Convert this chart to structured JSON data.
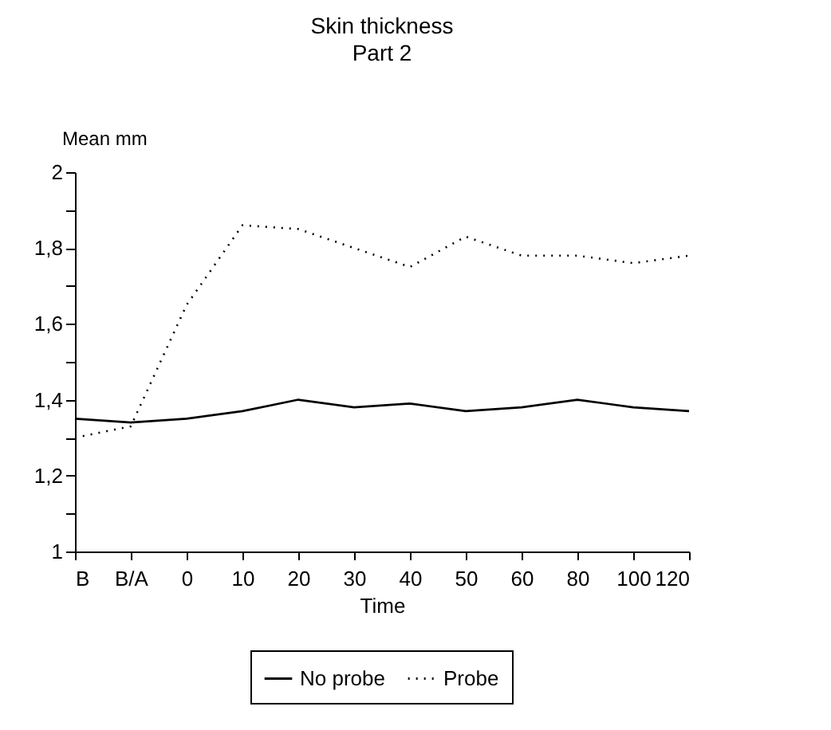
{
  "chart_data": {
    "type": "line",
    "title": "Skin thickness",
    "subtitle": "Part 2",
    "xlabel": "Time",
    "ylabel": "Mean mm",
    "categories": [
      "B",
      "B/A",
      "0",
      "10",
      "20",
      "30",
      "40",
      "50",
      "60",
      "80",
      "100",
      "120"
    ],
    "series": [
      {
        "name": "No probe",
        "color": "#000000",
        "line_style": "solid",
        "values": [
          1.35,
          1.34,
          1.35,
          1.37,
          1.4,
          1.38,
          1.39,
          1.37,
          1.38,
          1.4,
          1.38,
          1.37
        ]
      },
      {
        "name": "Probe",
        "color": "#000000",
        "line_style": "dotted",
        "values": [
          1.3,
          1.33,
          1.65,
          1.86,
          1.85,
          1.8,
          1.75,
          1.83,
          1.78,
          1.78,
          1.76,
          1.78
        ]
      }
    ],
    "ylim": [
      1,
      2
    ],
    "yticks": [
      1,
      {
        "value": 1.1,
        "label": null
      },
      {
        "value": 1.2,
        "label": "1,2"
      },
      {
        "value": 1.3,
        "label": null
      },
      {
        "value": 1.4,
        "label": "1,4"
      },
      {
        "value": 1.5,
        "label": null
      },
      {
        "value": 1.6,
        "label": "1,6"
      },
      {
        "value": 1.7,
        "label": null
      },
      {
        "value": 1.8,
        "label": "1,8"
      },
      {
        "value": 1.9,
        "label": null
      },
      2
    ],
    "grid": false,
    "legend": "bottom",
    "marker": "none"
  }
}
